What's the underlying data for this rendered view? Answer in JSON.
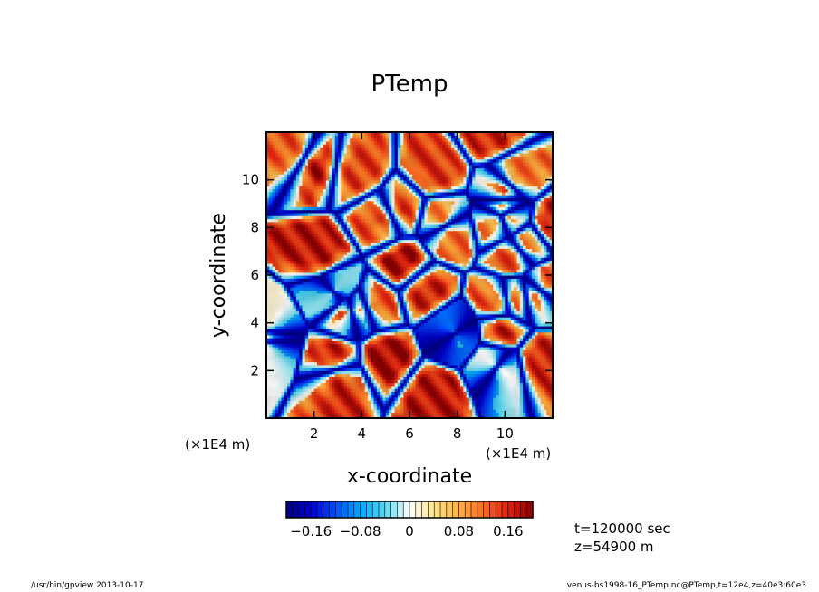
{
  "chart_data": {
    "type": "heatmap",
    "title": "PTemp",
    "xlabel": "x-coordinate",
    "ylabel": "y-coordinate",
    "x_scale_label": "(×1E4 m)",
    "y_scale_label": "(×1E4 m)",
    "xlim": [
      0,
      12
    ],
    "ylim": [
      0,
      12
    ],
    "xticks": [
      2,
      4,
      6,
      8,
      10
    ],
    "yticks": [
      2,
      4,
      6,
      8,
      10
    ],
    "xtick_labels": [
      "2",
      "4",
      "6",
      "8",
      "10"
    ],
    "ytick_labels": [
      "2",
      "4",
      "6",
      "8",
      "10"
    ],
    "colorbar": {
      "min": -0.2,
      "max": 0.2,
      "step": 0.01,
      "tick_values": [
        -0.16,
        -0.08,
        0,
        0.08,
        0.16
      ],
      "tick_labels": [
        "−0.16",
        "−0.08",
        "0",
        "0.08",
        "0.16"
      ],
      "colormap": [
        "#000080",
        "#0000d0",
        "#0050ff",
        "#00a8ff",
        "#58d8f0",
        "#ffffff",
        "#ffe48a",
        "#ffb040",
        "#ff6a20",
        "#e02010",
        "#8b0000"
      ]
    },
    "field_description_values": {
      "cell_range": [
        -0.2,
        0.2
      ],
      "pattern": "cellular convection: warm (positive) interiors bounded by narrow cold (negative) plume lanes"
    }
  },
  "annotations": {
    "time": "t=120000 sec",
    "height": "z=54900 m"
  },
  "footer": {
    "left": "/usr/bin/gpview   2013-10-17",
    "right": "venus-bs1998-16_PTemp.nc@PTemp,t=12e4,z=40e3:60e3"
  }
}
